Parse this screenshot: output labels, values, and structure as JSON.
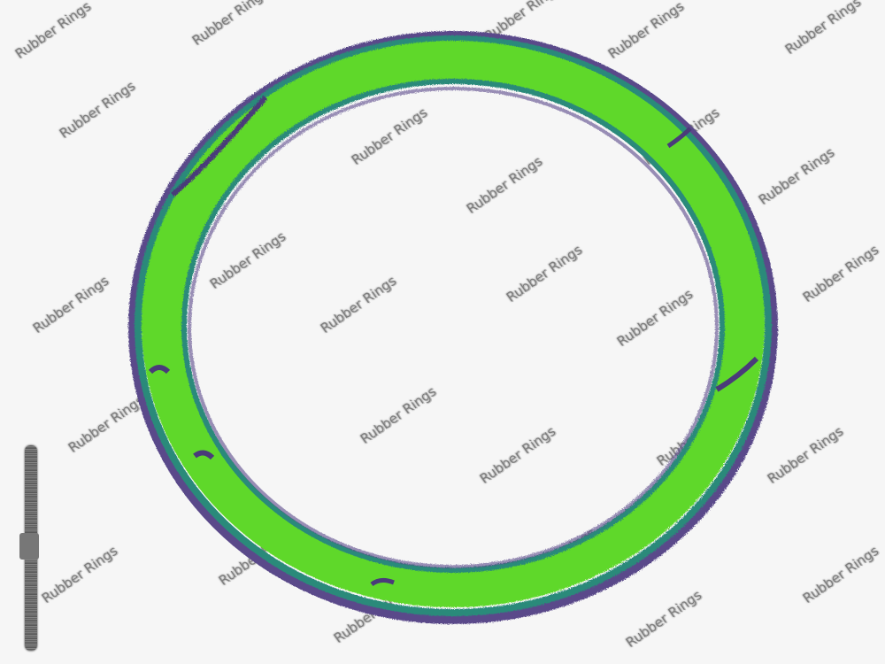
{
  "watermark": {
    "text": "Rubber Rings"
  },
  "ring": {
    "primary_color": "#5ed82a",
    "edge_color": "#2a8a7a",
    "shadow_color": "#5a4a8a"
  },
  "icons": {
    "ring": "green-rubber-ring",
    "scale": "vertical-scale-bar"
  }
}
